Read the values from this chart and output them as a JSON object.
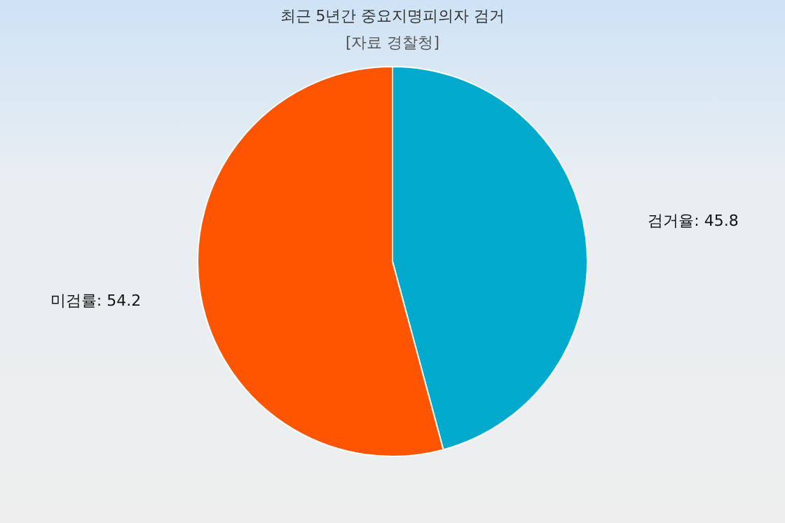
{
  "chart_data": {
    "type": "pie",
    "title": "최근 5년간 중요지명피의자 검거",
    "subtitle": "[자료 경찰청]",
    "categories": [
      "검거율",
      "미검률"
    ],
    "values": [
      45.8,
      54.2
    ],
    "colors": [
      "#00aacc",
      "#ff5500"
    ],
    "value_labels": [
      ": 45.8",
      ": 54.2"
    ]
  }
}
